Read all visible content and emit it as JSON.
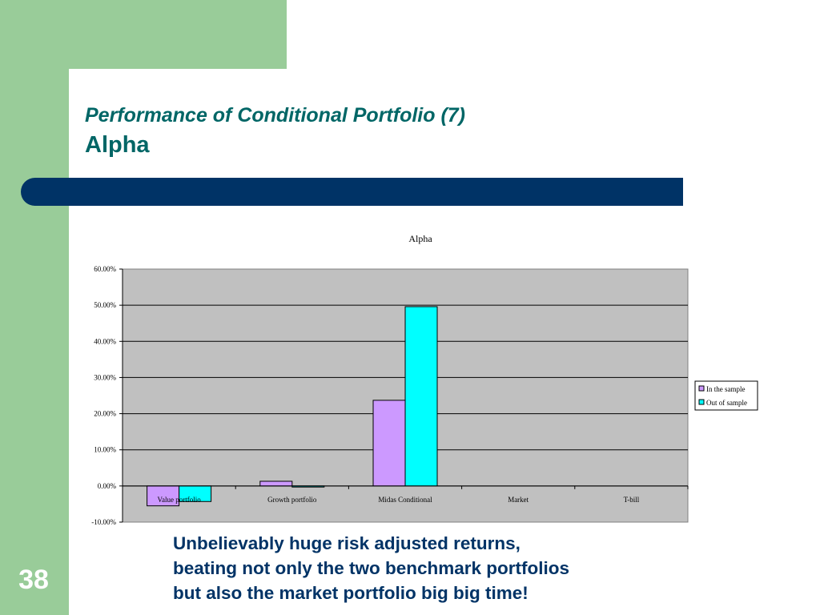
{
  "slide": {
    "title_line1": "Performance of Conditional Portfolio (7)",
    "title_line2": "Alpha",
    "caption_lines": [
      "Unbelievably huge  risk adjusted returns,",
      "beating not only the two benchmark portfolios",
      "but also the market portfolio big big time!"
    ],
    "slide_number": "38",
    "colors": {
      "band": "#99cc99",
      "title": "#006666",
      "bar": "#003366",
      "caption": "#003366"
    }
  },
  "chart_data": {
    "type": "bar",
    "title": "Alpha",
    "xlabel": "",
    "ylabel": "",
    "categories": [
      "Value portfolio",
      "Growth portfolio",
      "Midas Conditional",
      "Market",
      "T-bill"
    ],
    "series": [
      {
        "name": "In the sample",
        "values": [
          -5.5,
          1.3,
          23.7,
          0,
          0
        ],
        "color": "#cc99ff"
      },
      {
        "name": "Out of sample",
        "values": [
          -4.3,
          -0.3,
          49.6,
          0,
          0
        ],
        "color": "#00ffff"
      }
    ],
    "ylim": [
      -10,
      60
    ],
    "yticks": [
      60,
      50,
      40,
      30,
      20,
      10,
      0,
      -10
    ],
    "ytick_labels": [
      "60.00%",
      "50.00%",
      "40.00%",
      "30.00%",
      "20.00%",
      "10.00%",
      "0.00%",
      "-10.00%"
    ],
    "grid": true,
    "plot_background": "#c0c0c0",
    "legend_position": "right"
  }
}
